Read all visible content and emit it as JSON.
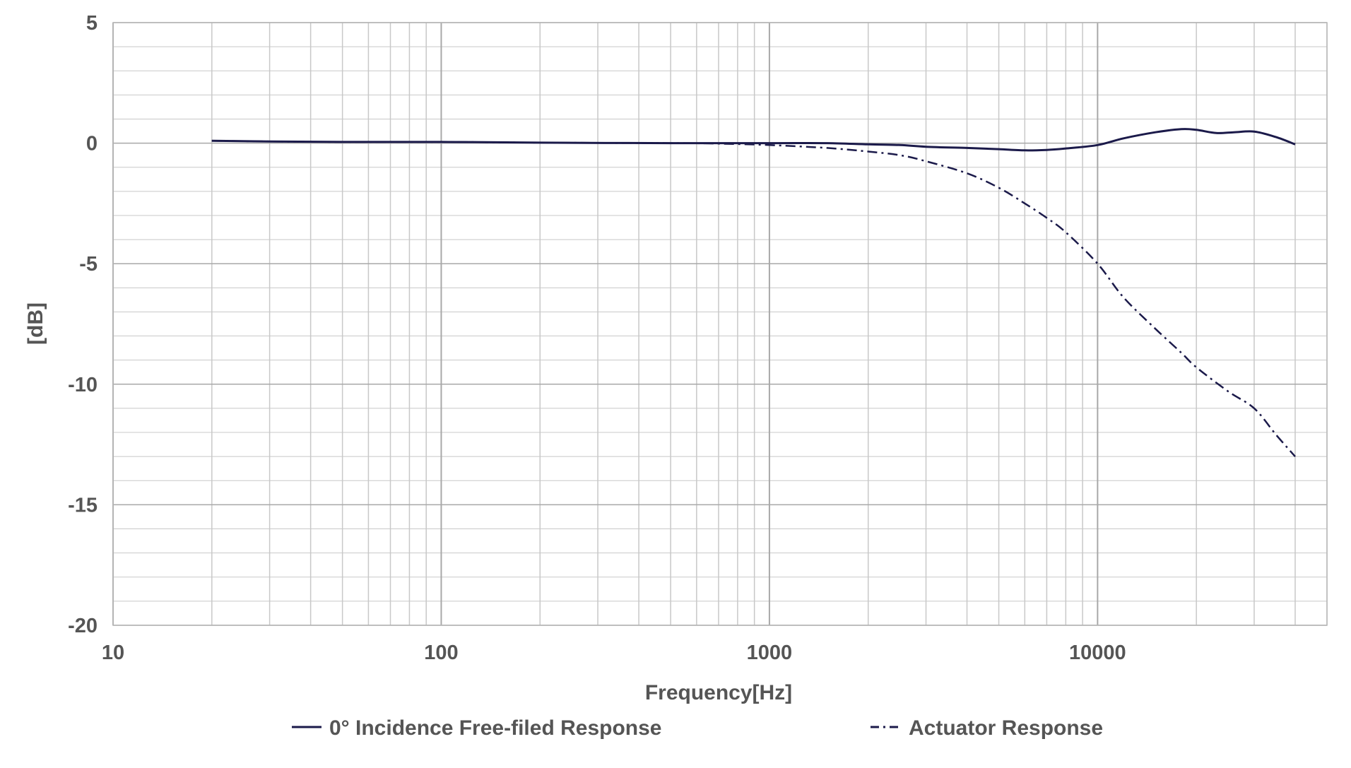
{
  "chart_data": {
    "type": "line",
    "title": "",
    "xlabel": "Frequency[Hz]",
    "ylabel": "[dB]",
    "xscale": "log",
    "xlim": [
      10,
      50000
    ],
    "ylim": [
      -20,
      5
    ],
    "grid": true,
    "legend_position": "bottom",
    "x_tick_labels": [
      "10",
      "100",
      "1000",
      "10000"
    ],
    "x_tick_values": [
      10,
      100,
      1000,
      10000
    ],
    "y_tick_labels": [
      "5",
      "0",
      "-5",
      "-10",
      "-15",
      "-20"
    ],
    "y_tick_values": [
      5,
      0,
      -5,
      -10,
      -15,
      -20
    ],
    "colors": {
      "series": "#1b1a4a",
      "grid_major": "#a8a8a8",
      "grid_minor": "#c8c8c8",
      "text": "#555555"
    },
    "series": [
      {
        "name": "0° Incidence Free-filed Response",
        "style": "solid",
        "x": [
          20,
          30,
          50,
          100,
          200,
          500,
          1000,
          1500,
          2000,
          2500,
          3000,
          4000,
          5000,
          6000,
          7000,
          8000,
          10000,
          12000,
          15000,
          18000,
          20000,
          23000,
          26000,
          30000,
          35000,
          40000
        ],
        "y": [
          0.1,
          0.07,
          0.05,
          0.05,
          0.02,
          0.0,
          0.0,
          0.0,
          -0.05,
          -0.08,
          -0.15,
          -0.2,
          -0.25,
          -0.3,
          -0.28,
          -0.22,
          -0.08,
          0.2,
          0.45,
          0.58,
          0.55,
          0.42,
          0.45,
          0.48,
          0.25,
          -0.05
        ]
      },
      {
        "name": "Actuator Response",
        "style": "dashdot",
        "x": [
          20,
          30,
          50,
          100,
          200,
          500,
          700,
          1000,
          1500,
          2000,
          2500,
          3000,
          4000,
          5000,
          6000,
          7000,
          8000,
          10000,
          12000,
          15000,
          18000,
          20000,
          25000,
          30000,
          35000,
          40000
        ],
        "y": [
          0.1,
          0.07,
          0.05,
          0.05,
          0.02,
          0.0,
          -0.02,
          -0.08,
          -0.2,
          -0.35,
          -0.5,
          -0.75,
          -1.25,
          -1.85,
          -2.5,
          -3.1,
          -3.7,
          -5.0,
          -6.4,
          -7.7,
          -8.7,
          -9.3,
          -10.3,
          -11.0,
          -12.1,
          -13.0
        ]
      }
    ]
  }
}
